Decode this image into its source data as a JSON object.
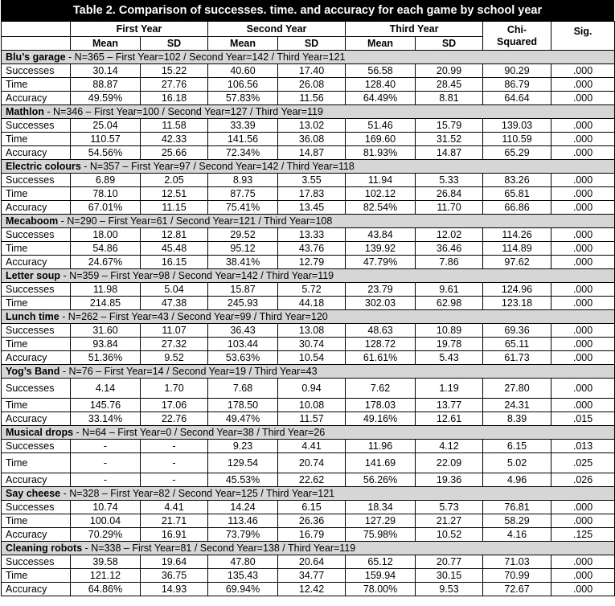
{
  "title": "Table 2. Comparison of successes. time. and accuracy for each game by school year",
  "headers": {
    "first_year": "First Year",
    "second_year": "Second Year",
    "third_year": "Third Year",
    "chi_squared_line1": "Chi-",
    "chi_squared_line2": "Squared",
    "sig": "Sig.",
    "mean": "Mean",
    "sd": "SD"
  },
  "games": [
    {
      "name": "Blu’s garage",
      "info": " - N=365 – First Year=102 / Second Year=142 / Third Year=121",
      "rows": [
        {
          "label": "Successes",
          "v": [
            "30.14",
            "15.22",
            "40.60",
            "17.40",
            "56.58",
            "20.99",
            "90.29",
            ".000"
          ]
        },
        {
          "label": "Time",
          "v": [
            "88.87",
            "27.76",
            "106.56",
            "26.08",
            "128.40",
            "28.45",
            "86.79",
            ".000"
          ]
        },
        {
          "label": "Accuracy",
          "v": [
            "49.59%",
            "16.18",
            "57.83%",
            "11.56",
            "64.49%",
            "8.81",
            "64.64",
            ".000"
          ]
        }
      ]
    },
    {
      "name": "Mathlon",
      "info": " - N=346 – First Year=100 / Second Year=127 / Third Year=119",
      "rows": [
        {
          "label": "Successes",
          "v": [
            "25.04",
            "11.58",
            "33.39",
            "13.02",
            "51.46",
            "15.79",
            "139.03",
            ".000"
          ]
        },
        {
          "label": "Time",
          "v": [
            "110.57",
            "42.33",
            "141.56",
            "36.08",
            "169.60",
            "31.52",
            "110.59",
            ".000"
          ]
        },
        {
          "label": "Accuracy",
          "v": [
            "54.56%",
            "25.66",
            "72.34%",
            "14.87",
            "81.93%",
            "14.87",
            "65.29",
            ".000"
          ]
        }
      ]
    },
    {
      "name": "Electric colours",
      "info": " - N=357 – First Year=97 / Second Year=142 / Third Year=118",
      "rows": [
        {
          "label": "Successes",
          "v": [
            "6.89",
            "2.05",
            "8.93",
            "3.55",
            "11.94",
            "5.33",
            "83.26",
            ".000"
          ]
        },
        {
          "label": "Time",
          "v": [
            "78.10",
            "12.51",
            "87.75",
            "17.83",
            "102.12",
            "26.84",
            "65.81",
            ".000"
          ]
        },
        {
          "label": "Accuracy",
          "v": [
            "67.01%",
            "11.15",
            "75.41%",
            "13.45",
            "82.54%",
            "11.70",
            "66.86",
            ".000"
          ]
        }
      ]
    },
    {
      "name": "Mecaboom",
      "info": " - N=290 – First Year=61 / Second Year=121 / Third Year=108",
      "rows": [
        {
          "label": "Successes",
          "v": [
            "18.00",
            "12.81",
            "29.52",
            "13.33",
            "43.84",
            "12.02",
            "114.26",
            ".000"
          ]
        },
        {
          "label": "Time",
          "v": [
            "54.86",
            "45.48",
            "95.12",
            "43.76",
            "139.92",
            "36.46",
            "114.89",
            ".000"
          ]
        },
        {
          "label": "Accuracy",
          "v": [
            "24.67%",
            "16.15",
            "38.41%",
            "12.79",
            "47.79%",
            "7.86",
            "97.62",
            ".000"
          ]
        }
      ]
    },
    {
      "name": "Letter soup",
      "info": " - N=359 – First Year=98 / Second Year=142 / Third Year=119",
      "rows": [
        {
          "label": "Successes",
          "v": [
            "11.98",
            "5.04",
            "15.87",
            "5.72",
            "23.79",
            "9.61",
            "124.96",
            ".000"
          ]
        },
        {
          "label": "Time",
          "v": [
            "214.85",
            "47.38",
            "245.93",
            "44.18",
            "302.03",
            "62.98",
            "123.18",
            ".000"
          ]
        }
      ]
    },
    {
      "name": "Lunch time",
      "info": " - N=262 – First Year=43 / Second Year=99 / Third Year=120",
      "rows": [
        {
          "label": "Successes",
          "v": [
            "31.60",
            "11.07",
            "36.43",
            "13.08",
            "48.63",
            "10.89",
            "69.36",
            ".000"
          ]
        },
        {
          "label": "Time",
          "v": [
            "93.84",
            "27.32",
            "103.44",
            "30.74",
            "128.72",
            "19.78",
            "65.11",
            ".000"
          ]
        },
        {
          "label": "Accuracy",
          "v": [
            "51.36%",
            "9.52",
            "53.63%",
            "10.54",
            "61.61%",
            "5.43",
            "61.73",
            ".000"
          ]
        }
      ]
    },
    {
      "name": "Yog’s Band",
      "info": " - N=76 – First Year=14 / Second Year=19 / Third Year=43",
      "rows": [
        {
          "label": "Successes",
          "v": [
            "4.14",
            "1.70",
            "7.68",
            "0.94",
            "7.62",
            "1.19",
            "27.80",
            ".000"
          ],
          "tall": true
        },
        {
          "label": "Time",
          "v": [
            "145.76",
            "17.06",
            "178.50",
            "10.08",
            "178.03",
            "13.77",
            "24.31",
            ".000"
          ]
        },
        {
          "label": "Accuracy",
          "v": [
            "33.14%",
            "22.76",
            "49.47%",
            "11.57",
            "49.16%",
            "12.61",
            "8.39",
            ".015"
          ]
        }
      ]
    },
    {
      "name": "Musical drops",
      "info": " - N=64 – First Year=0 / Second Year=38 / Third Year=26",
      "rows": [
        {
          "label": "Successes",
          "v": [
            "-",
            "-",
            "9.23",
            "4.41",
            "11.96",
            "4.12",
            "6.15",
            ".013"
          ]
        },
        {
          "label": "Time",
          "v": [
            "-",
            "-",
            "129.54",
            "20.74",
            "141.69",
            "22.09",
            "5.02",
            ".025"
          ],
          "tall": true
        },
        {
          "label": "Accuracy",
          "v": [
            "-",
            "-",
            "45.53%",
            "22.62",
            "56.26%",
            "19.36",
            "4.96",
            ".026"
          ]
        }
      ]
    },
    {
      "name": "Say cheese",
      "info": " - N=328 – First Year=82 / Second Year=125 / Third Year=121",
      "rows": [
        {
          "label": "Successes",
          "v": [
            "10.74",
            "4.41",
            "14.24",
            "6.15",
            "18.34",
            "5.73",
            "76.81",
            ".000"
          ]
        },
        {
          "label": "Time",
          "v": [
            "100.04",
            "21.71",
            "113.46",
            "26.36",
            "127.29",
            "21.27",
            "58.29",
            ".000"
          ]
        },
        {
          "label": "Accuracy",
          "v": [
            "70.29%",
            "16.91",
            "73.79%",
            "16.79",
            "75.98%",
            "10.52",
            "4.16",
            ".125"
          ]
        }
      ]
    },
    {
      "name": "Cleaning robots",
      "info": " - N=338 – First Year=81 / Second Year=138 / Third Year=119",
      "rows": [
        {
          "label": "Successes",
          "v": [
            "39.58",
            "19.64",
            "47.80",
            "20.64",
            "65.12",
            "20.77",
            "71.03",
            ".000"
          ]
        },
        {
          "label": "Time",
          "v": [
            "121.12",
            "36.75",
            "135.43",
            "34.77",
            "159.94",
            "30.15",
            "70.99",
            ".000"
          ]
        },
        {
          "label": "Accuracy",
          "v": [
            "64.86%",
            "14.93",
            "69.94%",
            "12.42",
            "78.00%",
            "9.53",
            "72.67",
            ".000"
          ]
        }
      ]
    }
  ]
}
